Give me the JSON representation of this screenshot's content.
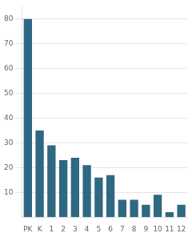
{
  "chart_data": {
    "type": "bar",
    "categories": [
      "PK",
      "K",
      "1",
      "2",
      "3",
      "4",
      "5",
      "6",
      "7",
      "8",
      "9",
      "10",
      "11",
      "12"
    ],
    "values": [
      80,
      35,
      29,
      23,
      24,
      21,
      16,
      17,
      7,
      7,
      5,
      9,
      2,
      5
    ],
    "color": "#2e6882",
    "ylim": [
      0,
      85
    ],
    "yticks": [
      10,
      20,
      30,
      40,
      50,
      60,
      70,
      80
    ],
    "grid": true
  }
}
